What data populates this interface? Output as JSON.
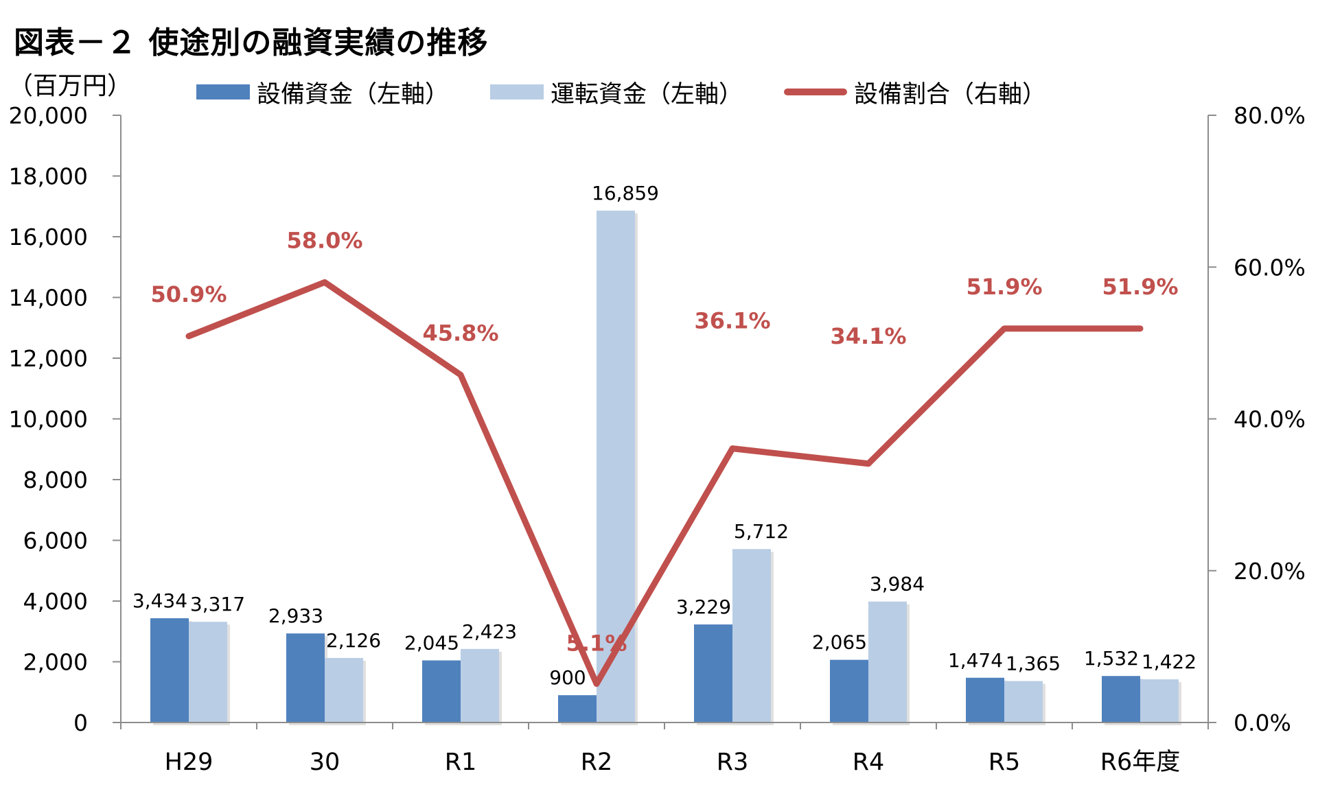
{
  "title": "図表－２ 使途別の融資実績の推移",
  "left_axis_unit": "（百万円）",
  "legend": [
    {
      "label": "設備資金（左軸）",
      "kind": "bar",
      "color": "#4f81bd"
    },
    {
      "label": "運転資金（左軸）",
      "kind": "bar",
      "color": "#b9cde5"
    },
    {
      "label": "設備割合（右軸）",
      "kind": "line",
      "color": "#c0504d"
    }
  ],
  "chart_data": {
    "type": "bar",
    "title": "図表－２ 使途別の融資実績の推移",
    "categories": [
      "H29",
      "30",
      "R1",
      "R2",
      "R3",
      "R4",
      "R5",
      "R6年度"
    ],
    "series": [
      {
        "name": "設備資金（左軸）",
        "type": "bar",
        "axis": "left",
        "color": "#4f81bd",
        "values": [
          3434,
          2933,
          2045,
          900,
          3229,
          2065,
          1474,
          1532
        ],
        "labels": [
          "3,434",
          "2,933",
          "2,045",
          "900",
          "3,229",
          "2,065",
          "1,474",
          "1,532"
        ]
      },
      {
        "name": "運転資金（左軸）",
        "type": "bar",
        "axis": "left",
        "color": "#b9cde5",
        "values": [
          3317,
          2126,
          2423,
          16859,
          5712,
          3984,
          1365,
          1422
        ],
        "labels": [
          "3,317",
          "2,126",
          "2,423",
          "16,859",
          "5,712",
          "3,984",
          "1,365",
          "1,422"
        ]
      },
      {
        "name": "設備割合（右軸）",
        "type": "line",
        "axis": "right",
        "color": "#c0504d",
        "values": [
          50.9,
          58.0,
          45.8,
          5.1,
          36.1,
          34.1,
          51.9,
          51.9
        ],
        "labels": [
          "50.9%",
          "58.0%",
          "45.8%",
          "5.1%",
          "36.1%",
          "34.1%",
          "51.9%",
          "51.9%"
        ]
      }
    ],
    "left_axis": {
      "unit": "（百万円）",
      "ylim": [
        0,
        20000
      ],
      "ticks": [
        "0",
        "2,000",
        "4,000",
        "6,000",
        "8,000",
        "10,000",
        "12,000",
        "14,000",
        "16,000",
        "18,000",
        "20,000"
      ]
    },
    "right_axis": {
      "ylim": [
        0,
        80
      ],
      "ticks": [
        "0.0%",
        "20.0%",
        "40.0%",
        "60.0%",
        "80.0%"
      ]
    },
    "grid": false,
    "legend_position": "top"
  }
}
